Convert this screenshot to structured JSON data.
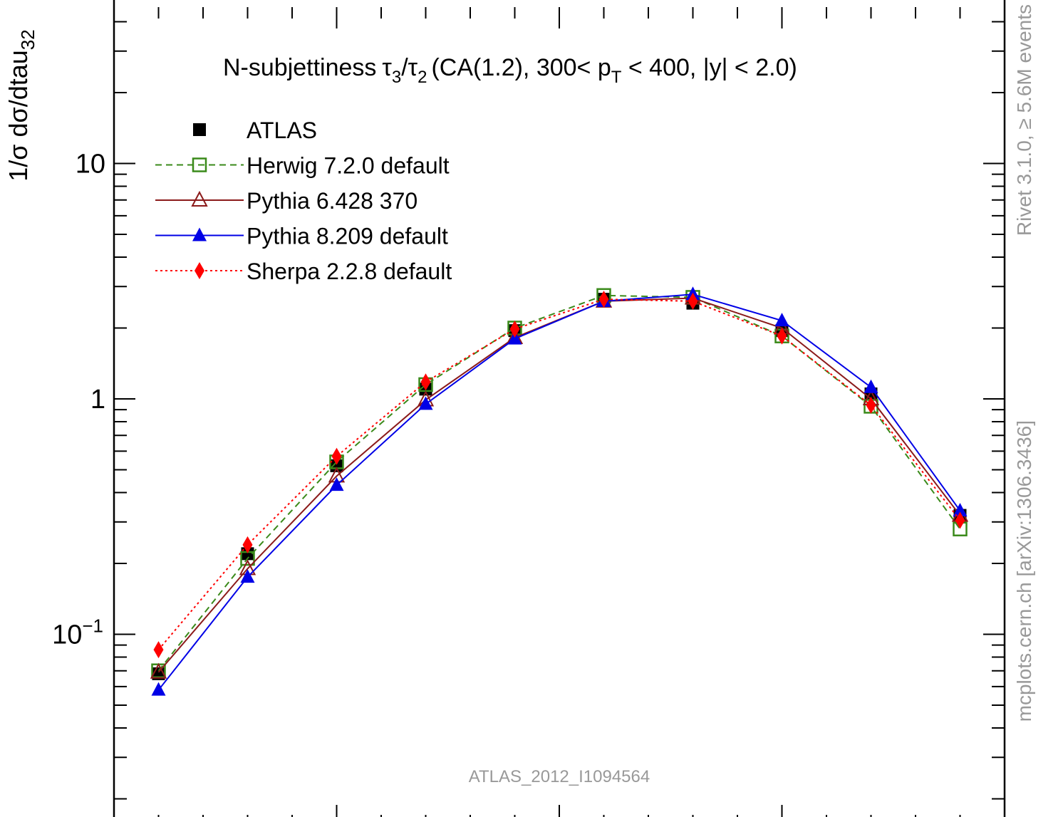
{
  "chart_data": {
    "type": "line",
    "title": "N-subjettiness",
    "title_formula": {
      "num": "τ",
      "num_sub": "3",
      "den": "τ",
      "den_sub": "2",
      "pre": "(CA(1.2), 300< p",
      "pt_sub": "T",
      "post": " < 400, |y| < 2.0)"
    },
    "ylabel": {
      "main": "1/σ dσ/dtau",
      "sub": "32"
    },
    "yscale": "log",
    "ylim": [
      0.02,
      50
    ],
    "xlim": [
      0,
      10
    ],
    "y_tick_labels": [
      {
        "value": 10,
        "text": "10"
      },
      {
        "value": 1,
        "text": "1"
      },
      {
        "value": 0.1,
        "base": "10",
        "exp": "−1"
      }
    ],
    "x": [
      0.5,
      1.5,
      2.5,
      3.5,
      4.5,
      5.5,
      6.5,
      7.5,
      8.5,
      9.5
    ],
    "series": [
      {
        "name": "ATLAS",
        "style": "data",
        "color": "#000000",
        "marker": "filled-square",
        "values": [
          0.068,
          0.22,
          0.52,
          1.1,
          1.95,
          2.65,
          2.55,
          1.95,
          1.05,
          0.32
        ]
      },
      {
        "name": "Herwig 7.2.0 default",
        "style": "dashed",
        "color": "#3a8a1a",
        "marker": "open-square",
        "values": [
          0.07,
          0.21,
          0.54,
          1.15,
          2.0,
          2.75,
          2.7,
          1.85,
          0.93,
          0.28
        ]
      },
      {
        "name": "Pythia 6.428 370",
        "style": "solid",
        "color": "#8b1a1a",
        "marker": "open-triangle",
        "values": [
          0.069,
          0.19,
          0.47,
          0.99,
          1.82,
          2.6,
          2.68,
          2.0,
          1.0,
          0.32
        ]
      },
      {
        "name": "Pythia 8.209 default",
        "style": "solid",
        "color": "#0000e6",
        "marker": "filled-triangle",
        "values": [
          0.058,
          0.175,
          0.43,
          0.95,
          1.8,
          2.6,
          2.78,
          2.15,
          1.12,
          0.335
        ]
      },
      {
        "name": "Sherpa 2.2.8 default",
        "style": "dotted",
        "color": "#ff0000",
        "marker": "filled-diamond",
        "values": [
          0.086,
          0.24,
          0.57,
          1.18,
          1.98,
          2.65,
          2.6,
          1.85,
          0.94,
          0.305
        ]
      }
    ],
    "annotations": {
      "analysis_id": "ATLAS_2012_I1094564",
      "side_top": "Rivet 3.1.0, ≥ 5.6M events",
      "side_bottom": "mcplots.cern.ch [arXiv:1306.3436]"
    }
  }
}
